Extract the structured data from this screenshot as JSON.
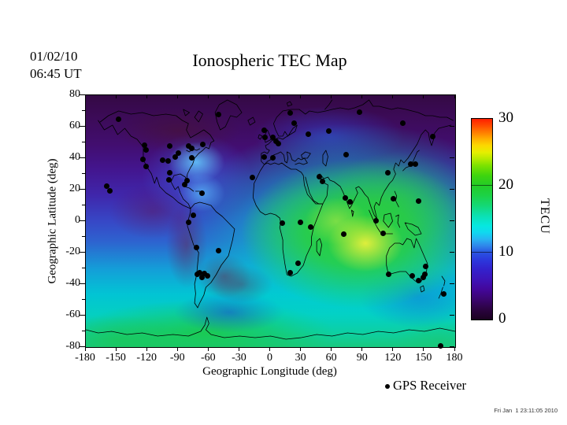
{
  "header": {
    "date": "01/02/10",
    "time_ut": "06:45 UT",
    "title": "Ionospheric TEC Map"
  },
  "axes": {
    "x_label": "Geographic Longitude (deg)",
    "y_label": "Geographic Latitude (deg)",
    "x_ticks": [
      -180,
      -150,
      -120,
      -90,
      -60,
      -30,
      0,
      30,
      60,
      90,
      120,
      150,
      180
    ],
    "y_ticks": [
      80,
      60,
      40,
      20,
      0,
      -20,
      -40,
      -60,
      -80
    ],
    "y_minor_ticks": [
      70,
      50,
      30,
      10,
      -10,
      -30,
      -50,
      -70
    ],
    "x_range": [
      -180,
      180
    ],
    "y_range": [
      -80,
      80
    ]
  },
  "colorbar": {
    "unit": "TECU",
    "min": 0,
    "max": 30,
    "ticks": [
      30,
      20,
      10,
      0
    ],
    "inner_tick_values": [
      20,
      10
    ],
    "stops": [
      {
        "v": 0,
        "c": "#1b0120"
      },
      {
        "v": 1.5,
        "c": "#2b0340"
      },
      {
        "v": 3,
        "c": "#3a056e"
      },
      {
        "v": 4.5,
        "c": "#43079a"
      },
      {
        "v": 6,
        "c": "#3d14b8"
      },
      {
        "v": 7.5,
        "c": "#3321cc"
      },
      {
        "v": 9,
        "c": "#2b3ade"
      },
      {
        "v": 10,
        "c": "#2a52e2"
      },
      {
        "v": 11,
        "c": "#2f86ea"
      },
      {
        "v": 12,
        "c": "#27b4f2"
      },
      {
        "v": 13,
        "c": "#10d8f0"
      },
      {
        "v": 14,
        "c": "#06e8e0"
      },
      {
        "v": 15.5,
        "c": "#0ce0b2"
      },
      {
        "v": 17,
        "c": "#14d876"
      },
      {
        "v": 18.5,
        "c": "#1cd247"
      },
      {
        "v": 20,
        "c": "#23cc28"
      },
      {
        "v": 21.5,
        "c": "#3ed40e"
      },
      {
        "v": 23,
        "c": "#7ce200"
      },
      {
        "v": 24,
        "c": "#b4ea00"
      },
      {
        "v": 25,
        "c": "#e6ee00"
      },
      {
        "v": 26,
        "c": "#fcd800"
      },
      {
        "v": 27,
        "c": "#ffae00"
      },
      {
        "v": 28,
        "c": "#ff7c00"
      },
      {
        "v": 29,
        "c": "#ff4a00"
      },
      {
        "v": 30,
        "c": "#ff1e00"
      }
    ]
  },
  "legend": {
    "marker": "gps-receiver-dot",
    "label": "GPS Receiver"
  },
  "footer": {
    "timestamp": "Fri Jan  1 23:11:05 2010"
  },
  "chart_data": {
    "type": "heatmap",
    "title": "Ionospheric TEC Map",
    "date": "01/02/10",
    "time_ut": "06:45 UT",
    "xlabel": "Geographic Longitude (deg)",
    "ylabel": "Geographic Latitude (deg)",
    "xlim": [
      -180,
      180
    ],
    "ylim": [
      -80,
      80
    ],
    "value_unit": "TECU",
    "value_range": [
      0,
      30
    ],
    "features": {
      "peak": {
        "lon": 92,
        "lat": -14,
        "approx_value_tecu": 24
      },
      "high_band": "equatorial high (~18-24 TECU) over Indian Ocean, South/Southeast Asia and northern Australia",
      "secondary_high": {
        "lon": -72,
        "lat": 28,
        "approx_value_tecu": 12,
        "note": "cyan patch off SE North America / Caribbean"
      },
      "southern_band": "cyan band (~12-15 TECU) across 40S-65S",
      "antarctic_band": "green band (~17-20 TECU) along the Antarctic coast",
      "low_regions": "dark purple (<5 TECU) across northern high latitudes and night-side Pacific/Americas",
      "local_lows": [
        {
          "lon": -80,
          "lat": -15
        },
        {
          "lon": -40,
          "lat": -37
        },
        {
          "lon": -112,
          "lat": 5
        }
      ]
    },
    "gps_receivers": [
      [
        -148,
        65
      ],
      [
        -51,
        68
      ],
      [
        19,
        69
      ],
      [
        23,
        62.5
      ],
      [
        37,
        55.5
      ],
      [
        57,
        57.5
      ],
      [
        87,
        69.5
      ],
      [
        129,
        62.5
      ],
      [
        158,
        54
      ],
      [
        -6.5,
        58
      ],
      [
        -5,
        53.5
      ],
      [
        2.5,
        53.5
      ],
      [
        5.5,
        51
      ],
      [
        7.5,
        49.5
      ],
      [
        -6.5,
        41
      ],
      [
        2.5,
        40.5
      ],
      [
        -17.5,
        28
      ],
      [
        74,
        42.5
      ],
      [
        137,
        36.5
      ],
      [
        141.5,
        36.5
      ],
      [
        114,
        31
      ],
      [
        47.5,
        28.5
      ],
      [
        50.5,
        25.5
      ],
      [
        73,
        15
      ],
      [
        77.5,
        12.5
      ],
      [
        120,
        14.5
      ],
      [
        144,
        13
      ],
      [
        -123,
        48.5
      ],
      [
        -121,
        45.5
      ],
      [
        -124,
        39.5
      ],
      [
        -121.5,
        35
      ],
      [
        -105.5,
        39
      ],
      [
        -99.5,
        38.5
      ],
      [
        -92.5,
        41
      ],
      [
        -90,
        43.5
      ],
      [
        -98,
        48
      ],
      [
        -79.5,
        48
      ],
      [
        -76.5,
        46.5
      ],
      [
        -66,
        49
      ],
      [
        -77,
        40.5
      ],
      [
        -98.5,
        31
      ],
      [
        -99,
        26.5
      ],
      [
        -81,
        26
      ],
      [
        -83.5,
        23.5
      ],
      [
        -66.5,
        18
      ],
      [
        -159.5,
        22.5
      ],
      [
        -156.5,
        19.5
      ],
      [
        -75.5,
        4
      ],
      [
        -79.5,
        -0.5
      ],
      [
        -72,
        -16.5
      ],
      [
        -50.5,
        -18.5
      ],
      [
        -71.5,
        -33.5
      ],
      [
        -69,
        -32.5
      ],
      [
        -66.8,
        -35.5
      ],
      [
        -64.5,
        -33
      ],
      [
        -61.5,
        -34.5
      ],
      [
        11.5,
        -1
      ],
      [
        29,
        -0.5
      ],
      [
        39,
        -3.5
      ],
      [
        26.5,
        -26.5
      ],
      [
        19.5,
        -32.5
      ],
      [
        71.5,
        -8
      ],
      [
        102.5,
        0.5
      ],
      [
        109.5,
        -7.5
      ],
      [
        115,
        -33.5
      ],
      [
        151.5,
        -28.5
      ],
      [
        138.5,
        -34.5
      ],
      [
        144.5,
        -37.5
      ],
      [
        148.9,
        -35.5
      ],
      [
        150.5,
        -33.5
      ],
      [
        168.5,
        -46
      ],
      [
        166,
        -79
      ]
    ]
  }
}
